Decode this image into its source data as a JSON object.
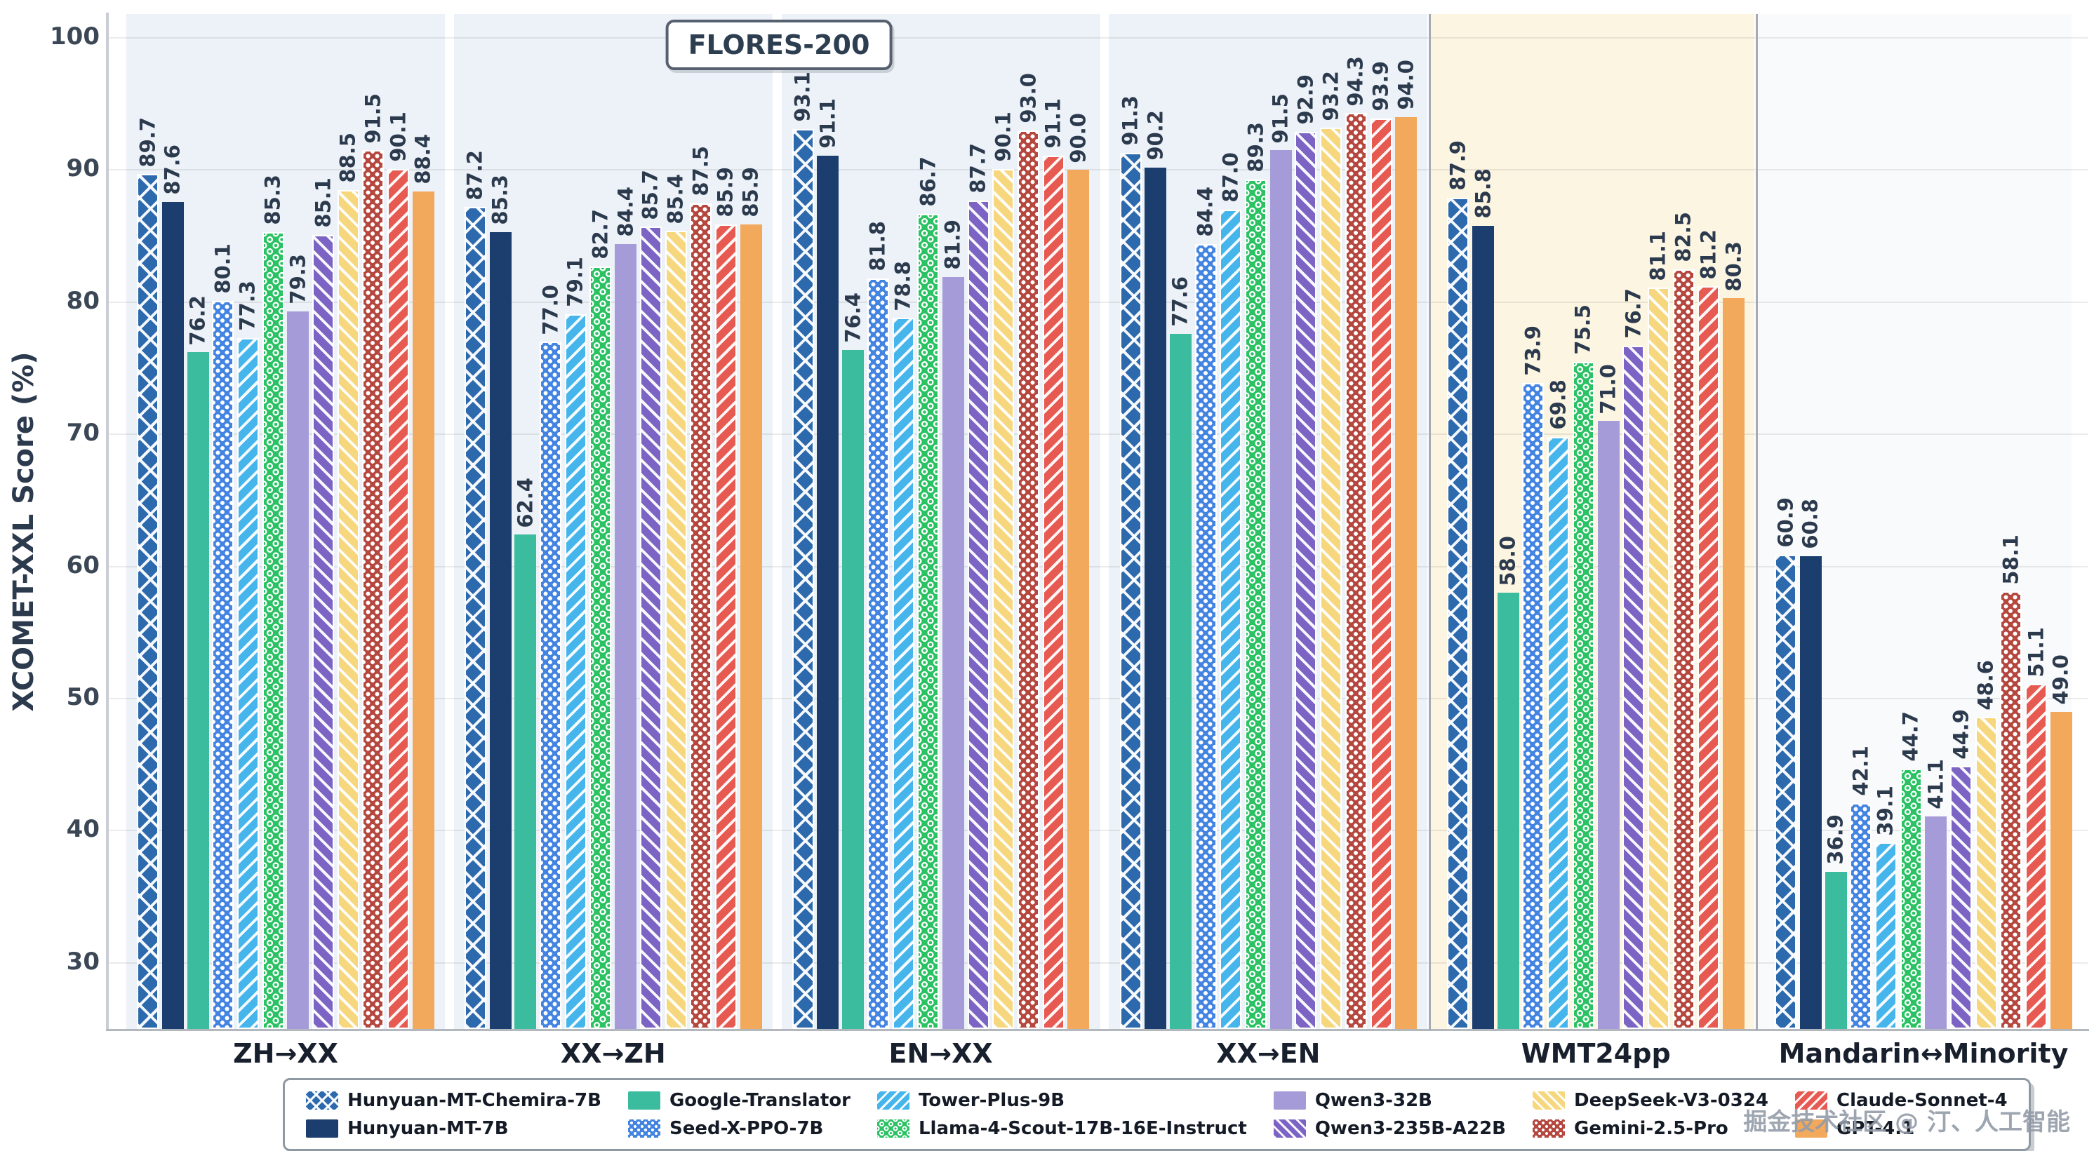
{
  "benchmark_label": "FLORES-200",
  "watermark": "掘金技术社区 @ 汀、人工智能",
  "y_axis": {
    "label": "XCOMET-XXL Score (%)"
  },
  "models": [
    {
      "name": "Hunyuan-MT-Chemira-7B",
      "color": "#2d6aad",
      "pattern": "crosshatch"
    },
    {
      "name": "Hunyuan-MT-7B",
      "color": "#1c3e6e",
      "pattern": "solid"
    },
    {
      "name": "Google-Translator",
      "color": "#3bbc9f",
      "pattern": "solid"
    },
    {
      "name": "Seed-X-PPO-7B",
      "color": "#4384e2",
      "pattern": "dots"
    },
    {
      "name": "Tower-Plus-9B",
      "color": "#45b5ec",
      "pattern": "stripes-up"
    },
    {
      "name": "Llama-4-Scout-17B-16E-Instruct",
      "color": "#2ac263",
      "pattern": "rings"
    },
    {
      "name": "Qwen3-32B",
      "color": "#a59bd8",
      "pattern": "solid"
    },
    {
      "name": "Qwen3-235B-A22B",
      "color": "#7c64c4",
      "pattern": "stripes-down"
    },
    {
      "name": "DeepSeek-V3-0324",
      "color": "#f6d77e",
      "pattern": "stripes-down"
    },
    {
      "name": "Gemini-2.5-Pro",
      "color": "#b5473e",
      "pattern": "dots"
    },
    {
      "name": "Claude-Sonnet-4",
      "color": "#e65a52",
      "pattern": "stripes-up"
    },
    {
      "name": "GPT-4.1",
      "color": "#f2a95c",
      "pattern": "solid"
    }
  ],
  "legend": {
    "rows": 2,
    "fill_order": "column-major"
  },
  "chart_data": {
    "type": "bar",
    "title": "FLORES-200",
    "xlabel": "",
    "ylabel": "XCOMET-XXL Score (%)",
    "ylim": [
      25,
      102
    ],
    "yticks": [
      100,
      90,
      80,
      70,
      60,
      50,
      40,
      30
    ],
    "grid": true,
    "legend_position": "bottom",
    "value_labels": "rotated-90-one-decimal",
    "categories": [
      "ZH→XX",
      "XX→ZH",
      "EN→XX",
      "XX→EN",
      "WMT24pp",
      "Mandarin↔Minority"
    ],
    "sections": [
      {
        "name": "FLORES-200",
        "categories": [
          "ZH→XX",
          "XX→ZH",
          "EN→XX",
          "XX→EN"
        ],
        "background": "#edf2f8"
      },
      {
        "name": "WMT24pp",
        "categories": [
          "WMT24pp"
        ],
        "background": "#fcf5e2"
      },
      {
        "name": "Mandarin↔Minority",
        "categories": [
          "Mandarin↔Minority"
        ],
        "background": "#f9fafb"
      }
    ],
    "series": [
      {
        "name": "Hunyuan-MT-Chemira-7B",
        "values": [
          89.7,
          87.2,
          93.1,
          91.3,
          87.9,
          60.9
        ]
      },
      {
        "name": "Hunyuan-MT-7B",
        "values": [
          87.6,
          85.3,
          91.1,
          90.2,
          85.8,
          60.8
        ]
      },
      {
        "name": "Google-Translator",
        "values": [
          76.2,
          62.4,
          76.4,
          77.6,
          58.0,
          36.9
        ]
      },
      {
        "name": "Seed-X-PPO-7B",
        "values": [
          80.1,
          77.0,
          81.8,
          84.4,
          73.9,
          42.1
        ]
      },
      {
        "name": "Tower-Plus-9B",
        "values": [
          77.3,
          79.1,
          78.8,
          87.0,
          69.8,
          39.1
        ]
      },
      {
        "name": "Llama-4-Scout-17B-16E-Instruct",
        "values": [
          85.3,
          82.7,
          86.7,
          89.3,
          75.5,
          44.7
        ]
      },
      {
        "name": "Qwen3-32B",
        "values": [
          79.3,
          84.4,
          81.9,
          91.5,
          71.0,
          41.1
        ]
      },
      {
        "name": "Qwen3-235B-A22B",
        "values": [
          85.1,
          85.7,
          87.7,
          92.9,
          76.7,
          44.9
        ]
      },
      {
        "name": "DeepSeek-V3-0324",
        "values": [
          88.5,
          85.4,
          90.1,
          93.2,
          81.1,
          48.6
        ]
      },
      {
        "name": "Gemini-2.5-Pro",
        "values": [
          91.5,
          87.5,
          93.0,
          94.3,
          82.5,
          58.1
        ]
      },
      {
        "name": "Claude-Sonnet-4",
        "values": [
          90.1,
          85.9,
          91.1,
          93.9,
          81.2,
          51.1
        ]
      },
      {
        "name": "GPT-4.1",
        "values": [
          88.4,
          85.9,
          90.0,
          94.0,
          80.3,
          49.0
        ]
      }
    ]
  }
}
